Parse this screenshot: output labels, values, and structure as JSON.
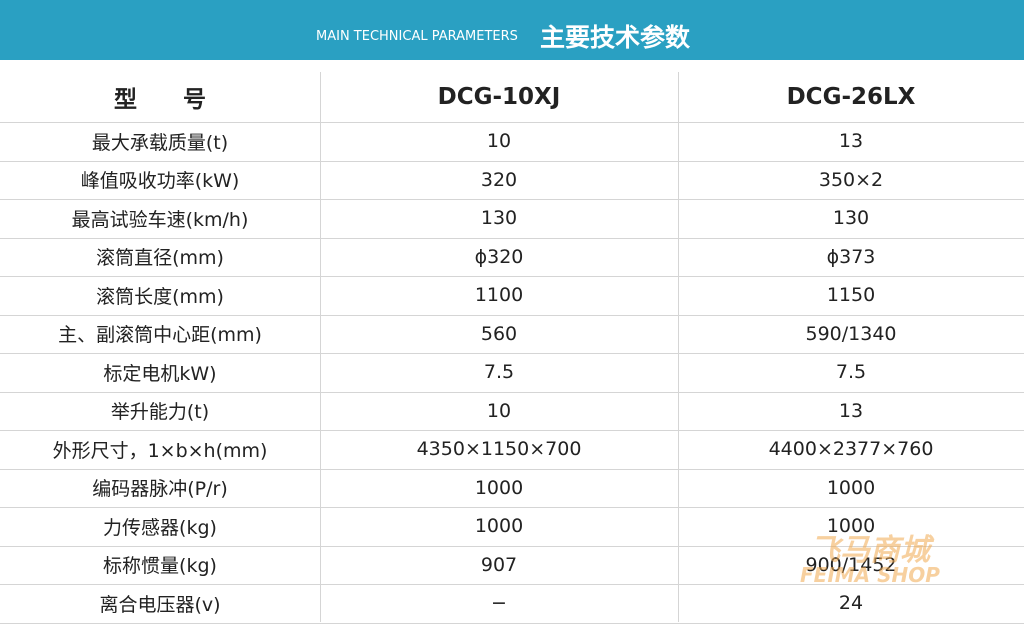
{
  "header": {
    "subtitle": "MAIN TECHNICAL PARAMETERS",
    "title": "主要技术参数"
  },
  "table": {
    "columns": [
      "型　　号",
      "DCG-10XJ",
      "DCG-26LX"
    ],
    "rows": [
      [
        "最大承载质量(t)",
        "10",
        "13"
      ],
      [
        "峰值吸收功率(kW)",
        "320",
        "350×2"
      ],
      [
        "最高试验车速(km/h)",
        "130",
        "130"
      ],
      [
        "滚筒直径(mm)",
        "ϕ320",
        "ϕ373"
      ],
      [
        "滚筒长度(mm)",
        "1100",
        "1150"
      ],
      [
        "主、副滚筒中心距(mm)",
        "560",
        "590/1340"
      ],
      [
        "标定电机kW)",
        "7.5",
        "7.5"
      ],
      [
        "举升能力(t)",
        "10",
        "13"
      ],
      [
        "外形尺寸，1×b×h(mm)",
        "4350×1150×700",
        "4400×2377×760"
      ],
      [
        "编码器脉冲(P/r)",
        "1000",
        "1000"
      ],
      [
        "力传感器(kg)",
        "1000",
        "1000"
      ],
      [
        "标称惯量(kg)",
        "907",
        "900/1452"
      ],
      [
        "离合电压器(v)",
        "−",
        "24"
      ]
    ]
  },
  "watermark": {
    "logo": "飞马商城",
    "text": "FEIMA SHOP"
  }
}
